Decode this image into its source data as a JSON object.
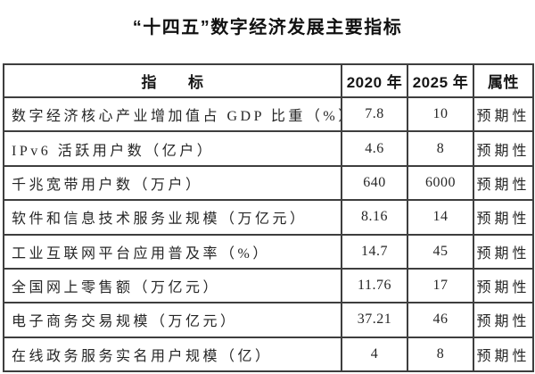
{
  "title": "“十四五”数字经济发展主要指标",
  "table": {
    "headers": {
      "indicator": "指　　标",
      "y2020": "2020 年",
      "y2025": "2025 年",
      "attribute": "属性"
    },
    "rows": [
      {
        "indicator": "数字经济核心产业增加值占 GDP 比重（%）",
        "y2020": "7.8",
        "y2025": "10",
        "attribute": "预期性"
      },
      {
        "indicator": "IPv6 活跃用户数（亿户）",
        "y2020": "4.6",
        "y2025": "8",
        "attribute": "预期性"
      },
      {
        "indicator": "千兆宽带用户数（万户）",
        "y2020": "640",
        "y2025": "6000",
        "attribute": "预期性"
      },
      {
        "indicator": "软件和信息技术服务业规模（万亿元）",
        "y2020": "8.16",
        "y2025": "14",
        "attribute": "预期性"
      },
      {
        "indicator": "工业互联网平台应用普及率（%）",
        "y2020": "14.7",
        "y2025": "45",
        "attribute": "预期性"
      },
      {
        "indicator": "全国网上零售额（万亿元）",
        "y2020": "11.76",
        "y2025": "17",
        "attribute": "预期性"
      },
      {
        "indicator": "电子商务交易规模（万亿元）",
        "y2020": "37.21",
        "y2025": "46",
        "attribute": "预期性"
      },
      {
        "indicator": "在线政务服务实名用户规模（亿）",
        "y2020": "4",
        "y2025": "8",
        "attribute": "预期性"
      }
    ]
  },
  "colors": {
    "text": "#1f1f1f",
    "border": "#3e3e3e",
    "background": "#ffffff"
  }
}
